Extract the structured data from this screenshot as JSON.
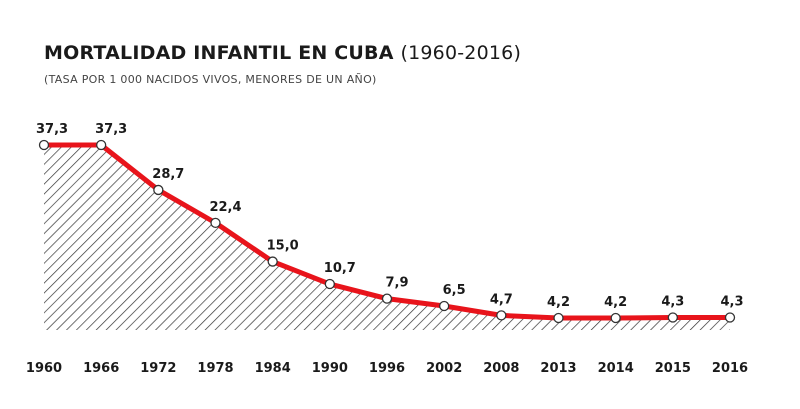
{
  "chart_data": {
    "type": "area",
    "title": "MORTALIDAD INFANTIL EN CUBA",
    "title_years": "(1960-2016)",
    "subtitle": "(TASA POR 1 000 NACIDOS VIVOS, MENORES DE UN AÑO)",
    "categories": [
      "1960",
      "1966",
      "1972",
      "1978",
      "1984",
      "1990",
      "1996",
      "2002",
      "2008",
      "2013",
      "2014",
      "2015",
      "2016"
    ],
    "values": [
      37.3,
      37.3,
      28.7,
      22.4,
      15.0,
      10.7,
      7.9,
      6.5,
      4.7,
      4.2,
      4.2,
      4.3,
      4.3
    ],
    "value_labels": [
      "37,3",
      "37,3",
      "28,7",
      "22,4",
      "15,0",
      "10,7",
      "7,9",
      "6,5",
      "4,7",
      "4,2",
      "4,2",
      "4,3",
      "4,3"
    ],
    "xlabel": "",
    "ylabel": "",
    "grid": false,
    "colors": {
      "line": "#e8141b",
      "hatch": "#333333",
      "marker_fill": "#ffffff",
      "text": "#1a1a1a"
    }
  }
}
